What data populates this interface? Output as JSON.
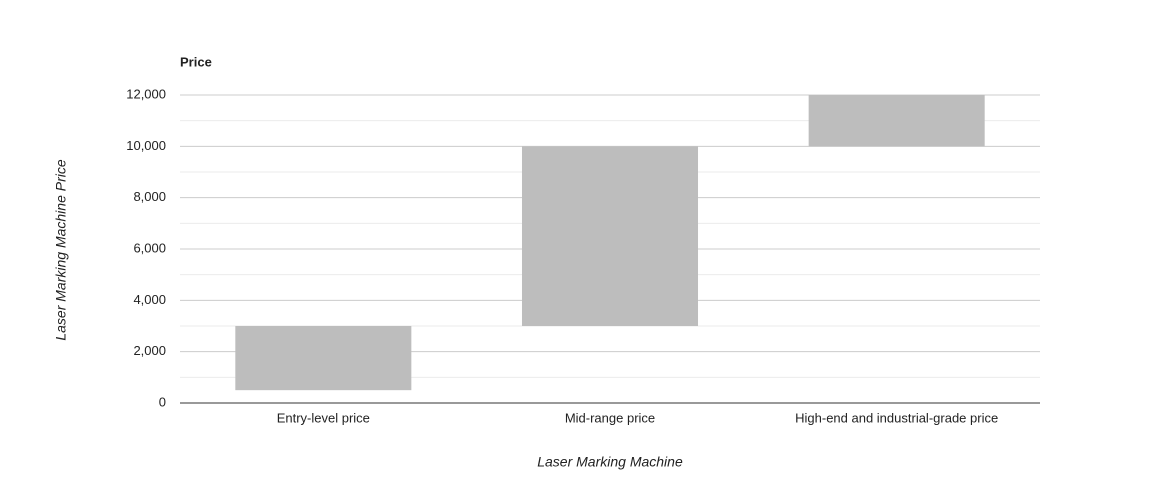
{
  "chart_data": {
    "type": "floating-bar",
    "title": "Price",
    "x_label": "Laser Marking Machine",
    "y_label": "Laser Marking Machine Price",
    "categories": [
      "Entry-level price",
      "Mid-range price",
      "High-end and industrial-grade price"
    ],
    "low": [
      500,
      3000,
      10000
    ],
    "high": [
      3000,
      10000,
      12000
    ],
    "color": "#bdbdbd",
    "ylim": [
      0,
      12000
    ],
    "yticks": [
      0,
      {
        "value": 2000,
        "label": "2,000"
      },
      {
        "value": 4000,
        "label": "4,000"
      },
      {
        "value": 6000,
        "label": "6,000"
      },
      {
        "value": 8000,
        "label": "8,000"
      },
      {
        "value": 10000,
        "label": "10,000"
      },
      {
        "value": 12000,
        "label": "12,000"
      }
    ],
    "minor_yticks": [
      1000,
      3000,
      5000,
      7000,
      9000,
      11000
    ],
    "grid": true
  }
}
